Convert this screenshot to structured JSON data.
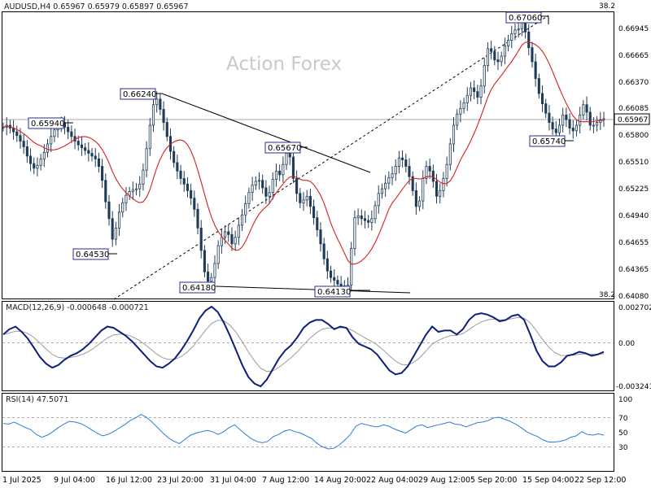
{
  "chart_data": {
    "type": "candlestick",
    "symbol_line": "AUDUSD,H4  0.65967 0.65979 0.65897 0.65967",
    "watermark": "Action Forex",
    "colors": {
      "candle": "#1f3b57",
      "ma": "#d62020",
      "macd": "#0d1f7a",
      "signal": "#9a9a9a",
      "rsi": "#2b7bd6",
      "label_border": "#2a2a8c"
    },
    "price_axis": {
      "ticks": [
        "0.66945",
        "0.66665",
        "0.66370",
        "0.66085",
        "0.65800",
        "0.65510",
        "0.65225",
        "0.64940",
        "0.64655",
        "0.64365",
        "0.64080"
      ],
      "current": "0.65967",
      "top_tag": "38.2",
      "bottom_tag": "38.2"
    },
    "annotations": [
      "0.67060",
      "0.66240",
      "0.65940",
      "0.65670",
      "0.65740",
      "0.64530",
      "0.64180",
      "0.64130"
    ],
    "price": [
      0.6588,
      0.659,
      0.6587,
      0.6583,
      0.6579,
      0.6573,
      0.6567,
      0.6557,
      0.6549,
      0.6544,
      0.6547,
      0.6554,
      0.6561,
      0.657,
      0.6578,
      0.6585,
      0.659,
      0.6592,
      0.6588,
      0.6583,
      0.6578,
      0.6573,
      0.6569,
      0.6566,
      0.6563,
      0.656,
      0.6557,
      0.6554,
      0.6546,
      0.6531,
      0.6508,
      0.649,
      0.6468,
      0.648,
      0.6497,
      0.6507,
      0.6515,
      0.6519,
      0.6521,
      0.6522,
      0.6527,
      0.6542,
      0.6565,
      0.659,
      0.6612,
      0.6618,
      0.6607,
      0.6593,
      0.6578,
      0.6562,
      0.655,
      0.6541,
      0.6533,
      0.6527,
      0.652,
      0.6512,
      0.65,
      0.648,
      0.6456,
      0.6433,
      0.6423,
      0.6427,
      0.6442,
      0.6461,
      0.647,
      0.6476,
      0.6473,
      0.6463,
      0.647,
      0.6483,
      0.6494,
      0.6506,
      0.6518,
      0.6526,
      0.653,
      0.6531,
      0.6523,
      0.6514,
      0.6518,
      0.6532,
      0.6541,
      0.6537,
      0.6548,
      0.656,
      0.6556,
      0.6533,
      0.6517,
      0.6507,
      0.651,
      0.6514,
      0.6503,
      0.6491,
      0.6478,
      0.6463,
      0.6447,
      0.6434,
      0.6427,
      0.6424,
      0.642,
      0.6418,
      0.6417,
      0.6419,
      0.6458,
      0.6491,
      0.6493,
      0.649,
      0.6488,
      0.6486,
      0.649,
      0.6504,
      0.6517,
      0.6522,
      0.6528,
      0.6534,
      0.6538,
      0.6546,
      0.6555,
      0.6553,
      0.6546,
      0.6535,
      0.652,
      0.6503,
      0.6509,
      0.6533,
      0.6546,
      0.6541,
      0.653,
      0.6514,
      0.652,
      0.6533,
      0.6548,
      0.657,
      0.659,
      0.6602,
      0.6608,
      0.6614,
      0.6622,
      0.663,
      0.6626,
      0.662,
      0.6632,
      0.6654,
      0.6672,
      0.6669,
      0.666,
      0.6658,
      0.6664,
      0.6675,
      0.6681,
      0.6688,
      0.6692,
      0.6693,
      0.6704,
      0.669,
      0.6673,
      0.6658,
      0.664,
      0.6624,
      0.6613,
      0.6603,
      0.6593,
      0.6586,
      0.6582,
      0.659,
      0.6601,
      0.6596,
      0.6587,
      0.6584,
      0.659,
      0.6601,
      0.6612,
      0.6604,
      0.659,
      0.659,
      0.6593,
      0.6596,
      0.6597
    ],
    "dates": [
      "1 Jul 2025",
      "9 Jul 04:00",
      "16 Jul 12:00",
      "23 Jul 20:00",
      "31 Jul 04:00",
      "7 Aug 12:00",
      "14 Aug 20:00",
      "22 Aug 04:00",
      "29 Aug 12:00",
      "5 Sep 20:00",
      "15 Sep 04:00",
      "22 Sep 12:00"
    ],
    "macd": {
      "label": "MACD(12,26,9) -0.000648 -0.000721",
      "ticks": [
        "0.002702",
        "0.00",
        "-0.003241"
      ],
      "values": [
        0.0006,
        0.001,
        0.0012,
        0.0008,
        0.0003,
        -0.0004,
        -0.0011,
        -0.0016,
        -0.0019,
        -0.0017,
        -0.0013,
        -0.001,
        -0.0008,
        -0.0005,
        -0.0001,
        0.0004,
        0.0009,
        0.0012,
        0.0011,
        0.0008,
        0.0005,
        0.0001,
        -0.0004,
        -0.0009,
        -0.0014,
        -0.0018,
        -0.0019,
        -0.0016,
        -0.0012,
        -0.0006,
        0.0001,
        0.0009,
        0.0018,
        0.0024,
        0.0027,
        0.0023,
        0.0015,
        0.0005,
        -0.0006,
        -0.0017,
        -0.0026,
        -0.0031,
        -0.0033,
        -0.0028,
        -0.002,
        -0.0012,
        -0.0006,
        -0.0002,
        0.0004,
        0.0011,
        0.0015,
        0.0017,
        0.0017,
        0.0014,
        0.001,
        0.0012,
        0.0011,
        0.0004,
        -0.0001,
        -0.0003,
        -0.0005,
        -0.0009,
        -0.0015,
        -0.0021,
        -0.0024,
        -0.0023,
        -0.0018,
        -0.001,
        -0.0002,
        0.0006,
        0.0012,
        0.0008,
        0.0009,
        0.0009,
        0.0006,
        0.001,
        0.0017,
        0.0021,
        0.0022,
        0.0021,
        0.0019,
        0.0016,
        0.0017,
        0.002,
        0.0021,
        0.0017,
        0.0006,
        -0.0006,
        -0.0014,
        -0.0018,
        -0.0018,
        -0.0015,
        -0.001,
        -0.0009,
        -0.0007,
        -0.0008,
        -0.001,
        -0.0009,
        -0.0007
      ]
    },
    "rsi": {
      "label": "RSI(14) 47.5071",
      "ticks": [
        "100",
        "70",
        "50",
        "30"
      ],
      "values": [
        64,
        63,
        66,
        62,
        58,
        55,
        48,
        44,
        47,
        52,
        58,
        63,
        67,
        66,
        64,
        60,
        55,
        50,
        46,
        48,
        52,
        57,
        62,
        68,
        72,
        77,
        73,
        66,
        58,
        50,
        43,
        38,
        35,
        41,
        47,
        50,
        52,
        54,
        52,
        48,
        52,
        58,
        62,
        55,
        48,
        42,
        38,
        36,
        38,
        45,
        48,
        53,
        55,
        52,
        50,
        46,
        42,
        35,
        30,
        27,
        28,
        33,
        40,
        48,
        60,
        64,
        62,
        60,
        59,
        62,
        60,
        56,
        53,
        50,
        55,
        60,
        62,
        58,
        60,
        62,
        64,
        66,
        63,
        62,
        59,
        62,
        65,
        66,
        68,
        72,
        73,
        70,
        67,
        63,
        58,
        52,
        48,
        45,
        40,
        37,
        37,
        38,
        40,
        44,
        46,
        52,
        48,
        47,
        49,
        47
      ]
    }
  }
}
